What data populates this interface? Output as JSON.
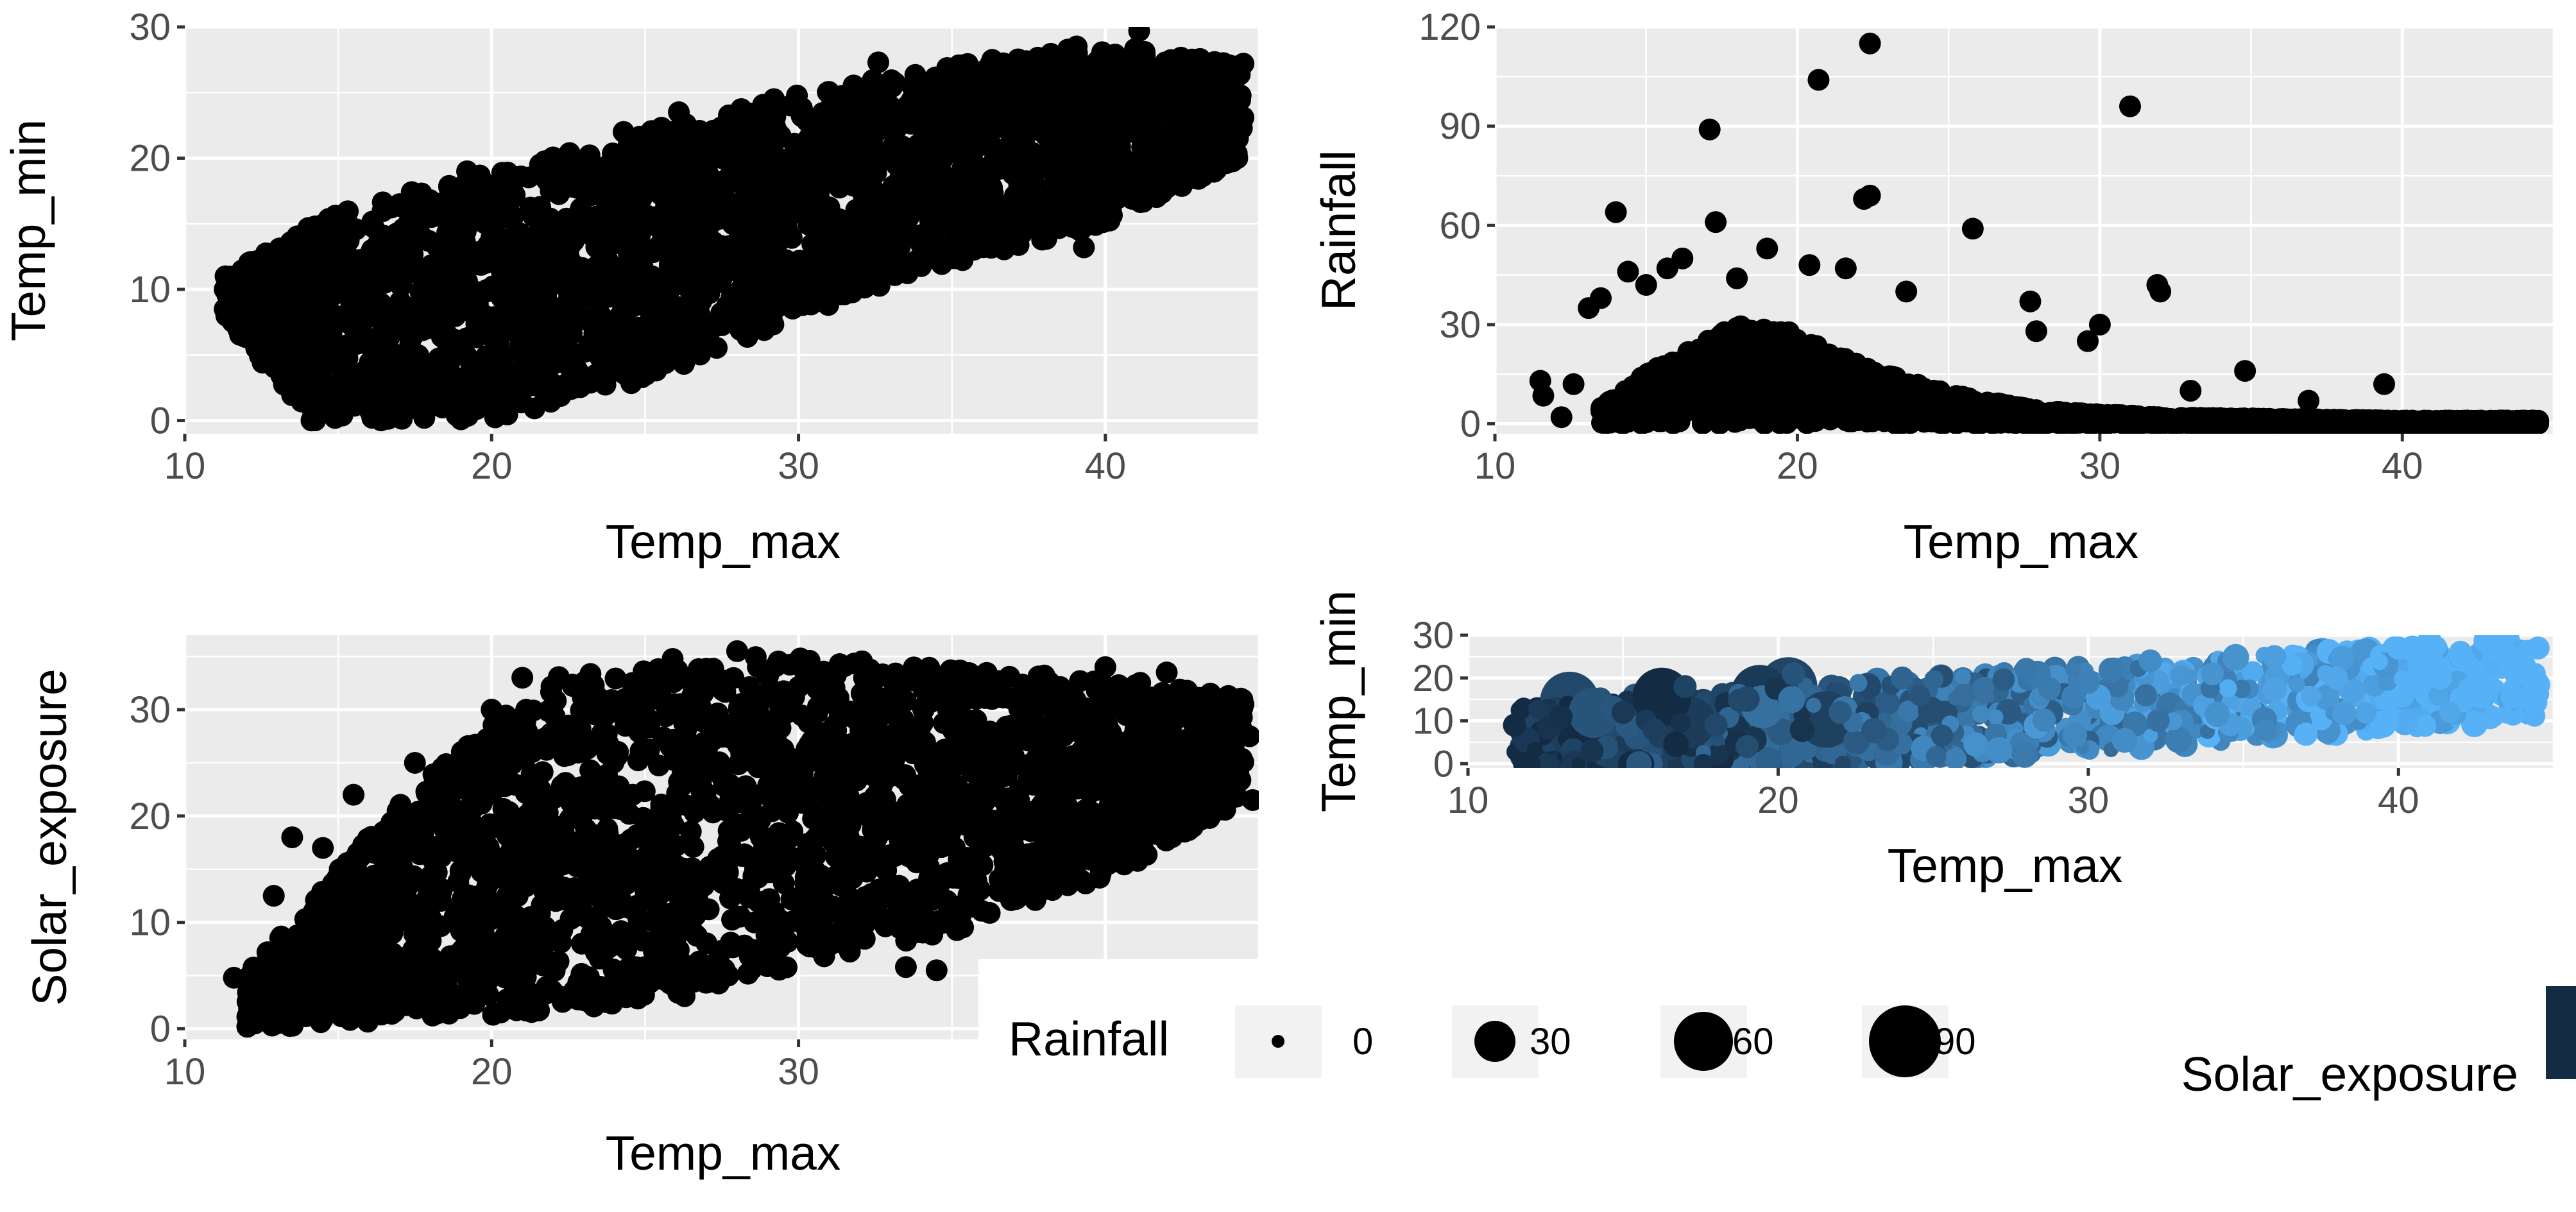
{
  "figure": {
    "panel_background": "#ebebeb",
    "grid_color": "#ffffff",
    "point_color": "#000000"
  },
  "chart_data": [
    {
      "id": "p1",
      "type": "scatter",
      "title": "",
      "xlabel": "Temp_max",
      "ylabel": "Temp_min",
      "xlim": [
        10,
        45
      ],
      "ylim": [
        -1,
        30
      ],
      "xticks": [
        10,
        20,
        30,
        40
      ],
      "yticks": [
        0,
        10,
        20,
        30
      ],
      "grid": true,
      "cloud": {
        "y_low": [
          [
            11.3,
            8
          ],
          [
            14,
            0
          ],
          [
            20,
            0
          ],
          [
            25,
            3
          ],
          [
            30,
            8
          ],
          [
            35,
            12
          ],
          [
            40,
            15
          ],
          [
            44.5,
            20
          ]
        ],
        "y_high": [
          [
            11.3,
            11
          ],
          [
            15,
            16
          ],
          [
            20,
            19
          ],
          [
            25,
            22
          ],
          [
            30,
            25
          ],
          [
            35,
            27
          ],
          [
            40,
            29
          ],
          [
            44.5,
            27
          ]
        ]
      },
      "points": [
        [
          11.3,
          10
        ],
        [
          11.3,
          8.5
        ],
        [
          14.0,
          14
        ],
        [
          17.0,
          16.5
        ],
        [
          19.2,
          19
        ],
        [
          24.3,
          22
        ],
        [
          26.1,
          23.5
        ],
        [
          29.2,
          24.5
        ],
        [
          32.6,
          27.3
        ],
        [
          38.3,
          26
        ],
        [
          41.1,
          29.7
        ],
        [
          41.8,
          26.8
        ],
        [
          42.4,
          27.3
        ],
        [
          44.5,
          27.2
        ],
        [
          44.5,
          23.1
        ],
        [
          44.3,
          20
        ],
        [
          43.2,
          22.3
        ],
        [
          39.3,
          13.2
        ],
        [
          33.5,
          16.8
        ],
        [
          32.0,
          11.5
        ],
        [
          27.0,
          12
        ],
        [
          22.0,
          7
        ],
        [
          20.5,
          2
        ],
        [
          18.4,
          1
        ],
        [
          17.0,
          0.5
        ],
        [
          14.9,
          0.2
        ],
        [
          13.2,
          5
        ],
        [
          12.5,
          10.5
        ]
      ]
    },
    {
      "id": "p2",
      "type": "scatter",
      "title": "",
      "xlabel": "Temp_max",
      "ylabel": "Rainfall",
      "xlim": [
        10,
        45
      ],
      "ylim": [
        -3,
        120
      ],
      "xticks": [
        10,
        20,
        30,
        40
      ],
      "yticks": [
        0,
        30,
        60,
        90,
        120
      ],
      "grid": true,
      "cloud": {
        "y_low": [
          [
            13.5,
            0
          ],
          [
            26,
            0
          ],
          [
            30,
            0
          ],
          [
            36,
            0
          ],
          [
            44.5,
            0
          ]
        ],
        "y_high": [
          [
            13.5,
            5
          ],
          [
            15,
            15
          ],
          [
            18,
            30
          ],
          [
            20,
            28
          ],
          [
            22,
            18
          ],
          [
            25,
            9
          ],
          [
            28,
            4
          ],
          [
            32,
            2
          ],
          [
            40,
            1
          ],
          [
            44.5,
            1
          ]
        ]
      },
      "points": [
        [
          11.5,
          13
        ],
        [
          11.6,
          8.5
        ],
        [
          12.2,
          2
        ],
        [
          12.6,
          12
        ],
        [
          13.1,
          35
        ],
        [
          13.5,
          38
        ],
        [
          14.0,
          64
        ],
        [
          14.4,
          46
        ],
        [
          15.0,
          42
        ],
        [
          15.7,
          47
        ],
        [
          16.2,
          50
        ],
        [
          17.1,
          89
        ],
        [
          17.3,
          61
        ],
        [
          18.0,
          44
        ],
        [
          19.0,
          53
        ],
        [
          20.4,
          48
        ],
        [
          20.7,
          104
        ],
        [
          21.6,
          47
        ],
        [
          22.2,
          68
        ],
        [
          22.4,
          115
        ],
        [
          22.4,
          69
        ],
        [
          23.6,
          40
        ],
        [
          25.8,
          59
        ],
        [
          27.9,
          28
        ],
        [
          27.7,
          37
        ],
        [
          29.6,
          25
        ],
        [
          30.0,
          30
        ],
        [
          31.0,
          96
        ],
        [
          31.9,
          42
        ],
        [
          32.0,
          40
        ],
        [
          33.0,
          10
        ],
        [
          34.8,
          16
        ],
        [
          36.9,
          7
        ],
        [
          39.4,
          12
        ]
      ]
    },
    {
      "id": "p3",
      "type": "scatter",
      "title": "",
      "xlabel": "Temp_max",
      "ylabel": "Solar_exposure",
      "xlim": [
        10,
        45
      ],
      "ylim": [
        -1,
        37
      ],
      "xticks": [
        10,
        20,
        30
      ],
      "yticks": [
        0,
        10,
        20,
        30
      ],
      "grid": true,
      "cloud": {
        "y_low": [
          [
            12,
            0
          ],
          [
            18,
            1
          ],
          [
            25,
            2
          ],
          [
            30,
            6
          ],
          [
            35,
            9
          ],
          [
            40,
            14
          ],
          [
            44.8,
            22
          ]
        ],
        "y_high": [
          [
            12,
            5
          ],
          [
            15,
            15
          ],
          [
            18,
            24
          ],
          [
            22,
            33
          ],
          [
            26,
            35
          ],
          [
            30,
            35
          ],
          [
            35,
            34
          ],
          [
            40,
            33
          ],
          [
            44.8,
            31
          ]
        ]
      },
      "points": [
        [
          11.6,
          4.8
        ],
        [
          12.2,
          1.8
        ],
        [
          12.9,
          12.5
        ],
        [
          13.5,
          18
        ],
        [
          14.5,
          17
        ],
        [
          15.5,
          22
        ],
        [
          17.5,
          25
        ],
        [
          20.0,
          30
        ],
        [
          21.0,
          33
        ],
        [
          28.0,
          35.5
        ],
        [
          33.5,
          5.8
        ],
        [
          34.5,
          5.5
        ],
        [
          40.0,
          34
        ],
        [
          42.0,
          33.5
        ],
        [
          44.5,
          30.5
        ],
        [
          44.7,
          27.5
        ],
        [
          44.8,
          21.5
        ]
      ]
    },
    {
      "id": "p4",
      "type": "scatter",
      "title": "",
      "xlabel": "Temp_max",
      "ylabel": "Temp_min",
      "xlim": [
        10,
        45
      ],
      "ylim": [
        -1,
        30
      ],
      "xticks": [
        10,
        20,
        30,
        40
      ],
      "yticks": [
        0,
        10,
        20,
        30
      ],
      "grid": true,
      "color_low": "#132b43",
      "color_high": "#56b1f7",
      "points": [
        [
          11.5,
          9
        ],
        [
          13.0,
          11
        ],
        [
          14.0,
          3
        ],
        [
          15.0,
          12
        ],
        [
          16.0,
          8
        ],
        [
          17.0,
          18
        ],
        [
          18.0,
          9
        ],
        [
          19.0,
          4
        ],
        [
          20.5,
          21
        ],
        [
          22.0,
          12
        ],
        [
          24.0,
          20
        ],
        [
          26.0,
          16
        ],
        [
          28.0,
          22
        ],
        [
          30.0,
          19
        ],
        [
          32.0,
          24
        ],
        [
          34.0,
          21
        ],
        [
          36.0,
          25
        ],
        [
          38.0,
          20
        ],
        [
          40.0,
          27
        ],
        [
          41.0,
          29
        ],
        [
          42.0,
          26
        ],
        [
          44.0,
          22
        ],
        [
          44.5,
          27
        ]
      ]
    }
  ],
  "legend": {
    "size_title": "Rainfall",
    "size_entries": [
      {
        "label": "0",
        "value": 0
      },
      {
        "label": "30",
        "value": 30
      },
      {
        "label": "60",
        "value": 60
      },
      {
        "label": "90",
        "value": 90
      }
    ],
    "color_title": "Solar_exposure",
    "color_swatch": "#132b43"
  }
}
